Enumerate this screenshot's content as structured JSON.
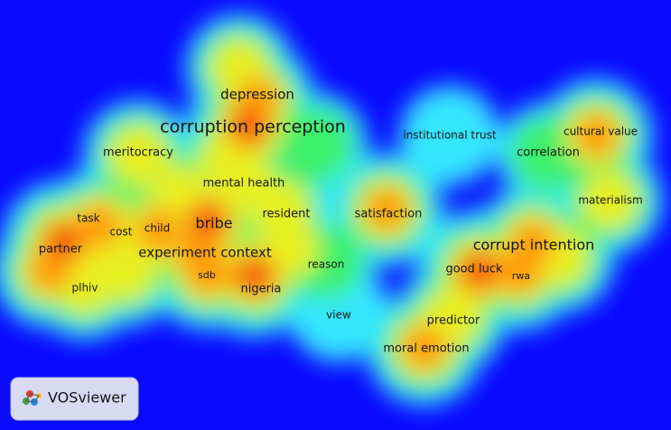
{
  "nodes": [
    {
      "label": "depression"
    },
    {
      "label": "corruption perception"
    },
    {
      "label": "meritocracy"
    },
    {
      "label": "institutional trust"
    },
    {
      "label": "cultural value"
    },
    {
      "label": "correlation"
    },
    {
      "label": "mental health"
    },
    {
      "label": "materialism"
    },
    {
      "label": "task"
    },
    {
      "label": "cost"
    },
    {
      "label": "child"
    },
    {
      "label": "bribe"
    },
    {
      "label": "resident"
    },
    {
      "label": "satisfaction"
    },
    {
      "label": "partner"
    },
    {
      "label": "experiment context"
    },
    {
      "label": "corrupt intention"
    },
    {
      "label": "good luck"
    },
    {
      "label": "rwa"
    },
    {
      "label": "reason"
    },
    {
      "label": "sdb"
    },
    {
      "label": "nigeria"
    },
    {
      "label": "plhiv"
    },
    {
      "label": "view"
    },
    {
      "label": "predictor"
    },
    {
      "label": "moral emotion"
    }
  ],
  "logo": {
    "text": "VOSviewer"
  }
}
